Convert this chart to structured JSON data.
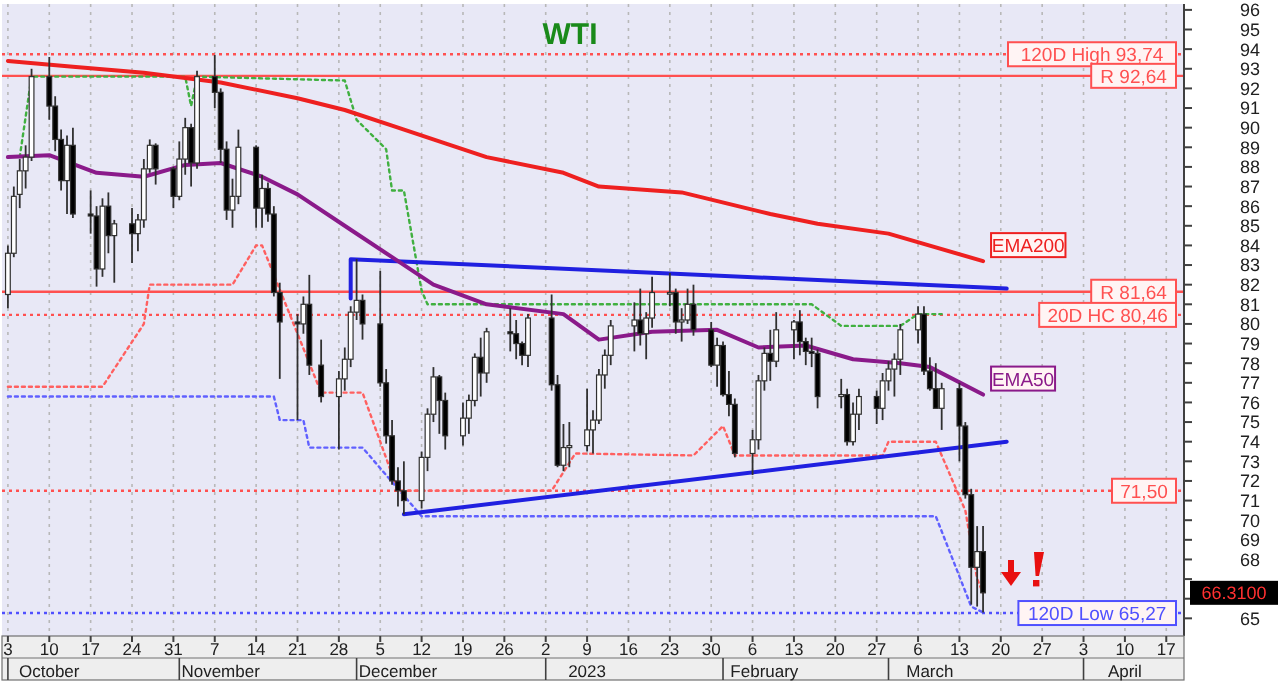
{
  "chart_data": {
    "type": "candlestick",
    "title": "WTI",
    "xlim": [
      "2022-10-02",
      "2023-04-20"
    ],
    "ylim": [
      64.1,
      96.3
    ],
    "xticks": [
      {
        "value": "2022-10-03",
        "label": "3"
      },
      {
        "value": "2022-10-10",
        "label": "10"
      },
      {
        "value": "2022-10-17",
        "label": "17"
      },
      {
        "value": "2022-10-24",
        "label": "24"
      },
      {
        "value": "2022-10-31",
        "label": "31"
      },
      {
        "value": "2022-11-07",
        "label": "7"
      },
      {
        "value": "2022-11-14",
        "label": "14"
      },
      {
        "value": "2022-11-21",
        "label": "21"
      },
      {
        "value": "2022-11-28",
        "label": "28"
      },
      {
        "value": "2022-12-05",
        "label": "5"
      },
      {
        "value": "2022-12-12",
        "label": "12"
      },
      {
        "value": "2022-12-19",
        "label": "19"
      },
      {
        "value": "2022-12-26",
        "label": "26"
      },
      {
        "value": "2023-01-02",
        "label": "2"
      },
      {
        "value": "2023-01-09",
        "label": "9"
      },
      {
        "value": "2023-01-16",
        "label": "16"
      },
      {
        "value": "2023-01-23",
        "label": "23"
      },
      {
        "value": "2023-01-30",
        "label": "30"
      },
      {
        "value": "2023-02-06",
        "label": "6"
      },
      {
        "value": "2023-02-13",
        "label": "13"
      },
      {
        "value": "2023-02-20",
        "label": "20"
      },
      {
        "value": "2023-02-27",
        "label": "27"
      },
      {
        "value": "2023-03-06",
        "label": "6"
      },
      {
        "value": "2023-03-13",
        "label": "13"
      },
      {
        "value": "2023-03-20",
        "label": "20"
      },
      {
        "value": "2023-03-27",
        "label": "27"
      },
      {
        "value": "2023-04-03",
        "label": "3"
      },
      {
        "value": "2023-04-10",
        "label": "10"
      },
      {
        "value": "2023-04-17",
        "label": "17"
      }
    ],
    "x2lim": [
      "2022-09-25",
      "2023-04-13"
    ],
    "x2ticks": [
      {
        "value": "2022-10-03",
        "label": "October"
      },
      {
        "value": "2022-11-01",
        "label": "November"
      },
      {
        "value": "2022-12-01",
        "label": "December"
      },
      {
        "value": "2023-01-02",
        "label": "2023"
      },
      {
        "value": "2023-02-01",
        "label": "February"
      },
      {
        "value": "2023-03-01",
        "label": "March"
      },
      {
        "value": "2023-04-03",
        "label": "April"
      }
    ],
    "yticks": [
      65,
      {
        "value": 66,
        "label": null
      },
      {
        "value": 67,
        "label": null
      },
      68,
      69,
      70,
      71,
      72,
      73,
      74,
      75,
      76,
      77,
      78,
      79,
      80,
      81,
      82,
      83,
      84,
      85,
      86,
      87,
      88,
      89,
      90,
      91,
      92,
      93,
      94,
      95,
      96
    ],
    "grid": "x",
    "marker": "none",
    "ref_lines": [
      {
        "axis": "y",
        "value": 93.74,
        "label": "120D High 93,74",
        "color": "#ff5050",
        "line_style": "dotted"
      },
      {
        "axis": "y",
        "value": 92.64,
        "label": "R 92,64",
        "color": "#ff5050",
        "line_style": "solid"
      },
      {
        "axis": "y",
        "value": 81.64,
        "label": "R 81,64",
        "color": "#ff5050",
        "line_style": "solid"
      },
      {
        "axis": "y",
        "value": 80.46,
        "label": "20D HC 80,46",
        "color": "#ff5050",
        "line_style": "dotted"
      },
      {
        "axis": "y",
        "value": 71.5,
        "label": "71,50",
        "color": "#ff5050",
        "line_style": "dotted"
      },
      {
        "axis": "y",
        "value": 65.27,
        "label": "120D Low 65,27",
        "color": "#5050ff",
        "line_style": "dotted"
      }
    ],
    "annotations": [
      "66.3100"
    ],
    "series": [
      {
        "type": "line",
        "color": "#ff6060",
        "line_style": "dotted",
        "x": [
          "2022-10-03",
          "2022-10-19",
          "2022-10-26",
          "2022-10-27",
          "2022-11-10",
          "2022-11-14",
          "2022-11-15",
          "2022-11-21",
          "2022-11-23",
          "2022-11-25",
          "2022-12-02",
          "2022-12-08",
          "2023-01-03",
          "2023-01-07",
          "2023-01-27",
          "2023-02-01",
          "2023-02-03",
          "2023-02-28",
          "2023-03-01",
          "2023-03-09",
          "2023-03-14",
          "2023-03-16",
          "2023-03-17"
        ],
        "values": [
          76.8,
          76.8,
          80.0,
          82.0,
          82.0,
          84.0,
          84.0,
          79.5,
          78.0,
          76.5,
          76.5,
          71.5,
          71.5,
          73.4,
          73.3,
          74.8,
          73.3,
          73.3,
          74.0,
          74.0,
          70.5,
          67.0,
          66.3
        ]
      },
      {
        "type": "line",
        "color": "#40b040",
        "line_style": "dotted",
        "x": [
          "2022-10-05",
          "2022-10-07",
          "2022-11-02",
          "2022-11-03",
          "2022-11-04",
          "2022-11-29",
          "2022-12-01",
          "2022-12-06",
          "2022-12-07",
          "2022-12-09",
          "2022-12-12",
          "2022-12-13",
          "2023-02-16",
          "2023-02-21",
          "2023-03-03",
          "2023-03-06",
          "2023-03-10"
        ],
        "values": [
          88.5,
          92.6,
          92.6,
          91.1,
          92.6,
          92.4,
          90.4,
          88.9,
          86.8,
          86.8,
          81.7,
          81.0,
          81.0,
          79.9,
          79.9,
          80.5,
          80.5
        ]
      },
      {
        "type": "line",
        "color": "#6060ff",
        "line_style": "dotted",
        "x": [
          "2022-10-03",
          "2022-11-17",
          "2022-11-18",
          "2022-11-22",
          "2022-11-23",
          "2022-12-02",
          "2022-12-12",
          "2023-03-09",
          "2023-03-15",
          "2023-03-17"
        ],
        "values": [
          76.3,
          76.3,
          75.1,
          75.1,
          73.7,
          73.7,
          70.2,
          70.2,
          65.6,
          65.3
        ]
      },
      {
        "type": "line",
        "color": "#2020e0",
        "line_style": "solid",
        "x": [
          "2022-11-30",
          "2022-11-30",
          "2023-03-21"
        ],
        "values": [
          81.3,
          83.3,
          81.8
        ]
      },
      {
        "type": "line",
        "color": "#2020e0",
        "line_style": "solid",
        "x": [
          "2022-12-09",
          "2023-03-21"
        ],
        "values": [
          70.3,
          74.0
        ]
      },
      {
        "type": "line",
        "name": "EMA200",
        "color": "#ee2020",
        "line_style": "solid",
        "x": [
          "2022-10-03",
          "2022-10-14",
          "2022-10-26",
          "2022-11-08",
          "2022-11-21",
          "2022-11-29",
          "2022-12-07",
          "2022-12-16",
          "2022-12-23",
          "2023-01-05",
          "2023-01-11",
          "2023-01-25",
          "2023-02-09",
          "2023-02-17",
          "2023-03-01",
          "2023-03-17"
        ],
        "values": [
          93.4,
          93.1,
          92.8,
          92.3,
          91.5,
          90.9,
          90.1,
          89.2,
          88.5,
          87.7,
          87.0,
          86.7,
          85.6,
          85.1,
          84.6,
          83.2
        ]
      },
      {
        "type": "line",
        "name": "EMA50",
        "color": "#8a1a8a",
        "line_style": "solid",
        "x": [
          "2022-10-03",
          "2022-10-10",
          "2022-10-18",
          "2022-10-26",
          "2022-11-02",
          "2022-11-08",
          "2022-11-15",
          "2022-11-21",
          "2022-11-30",
          "2022-12-07",
          "2022-12-14",
          "2022-12-23",
          "2023-01-05",
          "2023-01-11",
          "2023-01-20",
          "2023-01-31",
          "2023-02-07",
          "2023-02-15",
          "2023-02-23",
          "2023-03-03",
          "2023-03-08",
          "2023-03-17"
        ],
        "values": [
          88.5,
          88.6,
          87.7,
          87.5,
          88.1,
          88.2,
          87.5,
          86.6,
          84.8,
          83.4,
          82.0,
          81.0,
          80.5,
          79.2,
          79.6,
          79.7,
          78.8,
          78.9,
          78.2,
          78.0,
          77.8,
          76.4
        ]
      },
      {
        "x": [
          "2022-10-03",
          "2022-10-04",
          "2022-10-05",
          "2022-10-06",
          "2022-10-07",
          "2022-10-10",
          "2022-10-11",
          "2022-10-12",
          "2022-10-13",
          "2022-10-14",
          "2022-10-17",
          "2022-10-18",
          "2022-10-19",
          "2022-10-20",
          "2022-10-21",
          "2022-10-24",
          "2022-10-25",
          "2022-10-26",
          "2022-10-27",
          "2022-10-28",
          "2022-10-31",
          "2022-11-01",
          "2022-11-02",
          "2022-11-03",
          "2022-11-04",
          "2022-11-07",
          "2022-11-08",
          "2022-11-09",
          "2022-11-10",
          "2022-11-11",
          "2022-11-14",
          "2022-11-15",
          "2022-11-16",
          "2022-11-17",
          "2022-11-18",
          "2022-11-21",
          "2022-11-22",
          "2022-11-23",
          "2022-11-25",
          "2022-11-28",
          "2022-11-29",
          "2022-11-30",
          "2022-12-01",
          "2022-12-02",
          "2022-12-05",
          "2022-12-06",
          "2022-12-07",
          "2022-12-08",
          "2022-12-09",
          "2022-12-12",
          "2022-12-13",
          "2022-12-14",
          "2022-12-15",
          "2022-12-16",
          "2022-12-19",
          "2022-12-20",
          "2022-12-21",
          "2022-12-22",
          "2022-12-23",
          "2022-12-27",
          "2022-12-28",
          "2022-12-29",
          "2022-12-30",
          "2023-01-03",
          "2023-01-04",
          "2023-01-05",
          "2023-01-06",
          "2023-01-09",
          "2023-01-10",
          "2023-01-11",
          "2023-01-12",
          "2023-01-13",
          "2023-01-17",
          "2023-01-18",
          "2023-01-19",
          "2023-01-20",
          "2023-01-23",
          "2023-01-24",
          "2023-01-25",
          "2023-01-26",
          "2023-01-27",
          "2023-01-30",
          "2023-01-31",
          "2023-02-01",
          "2023-02-02",
          "2023-02-03",
          "2023-02-06",
          "2023-02-07",
          "2023-02-08",
          "2023-02-09",
          "2023-02-10",
          "2023-02-13",
          "2023-02-14",
          "2023-02-15",
          "2023-02-16",
          "2023-02-17",
          "2023-02-21",
          "2023-02-22",
          "2023-02-23",
          "2023-02-24",
          "2023-02-27",
          "2023-02-28",
          "2023-03-01",
          "2023-03-02",
          "2023-03-03",
          "2023-03-06",
          "2023-03-07",
          "2023-03-08",
          "2023-03-09",
          "2023-03-10",
          "2023-03-13",
          "2023-03-14",
          "2023-03-15",
          "2023-03-16",
          "2023-03-17"
        ],
        "ohlc": [
          [
            81.5,
            84.0,
            80.8,
            83.6
          ],
          [
            83.6,
            87.0,
            83.4,
            86.5
          ],
          [
            86.6,
            88.4,
            85.9,
            87.8
          ],
          [
            87.8,
            89.1,
            86.9,
            88.5
          ],
          [
            88.5,
            93.0,
            88.3,
            92.6
          ],
          [
            92.6,
            93.6,
            90.4,
            91.1
          ],
          [
            91.1,
            91.6,
            88.8,
            89.4
          ],
          [
            89.4,
            89.9,
            86.8,
            87.3
          ],
          [
            87.3,
            89.6,
            85.6,
            89.1
          ],
          [
            89.1,
            90.0,
            85.4,
            85.6
          ],
          [
            85.6,
            86.8,
            84.6,
            85.5
          ],
          [
            85.5,
            86.0,
            81.9,
            82.8
          ],
          [
            82.8,
            86.4,
            82.4,
            86.0
          ],
          [
            86.0,
            86.7,
            83.6,
            84.5
          ],
          [
            84.5,
            85.3,
            82.1,
            85.1
          ],
          [
            85.1,
            85.9,
            83.1,
            84.6
          ],
          [
            84.6,
            85.6,
            83.7,
            85.3
          ],
          [
            85.3,
            88.4,
            84.9,
            87.9
          ],
          [
            87.9,
            89.4,
            87.7,
            89.1
          ],
          [
            89.1,
            89.2,
            87.1,
            87.9
          ],
          [
            87.9,
            88.0,
            85.9,
            86.5
          ],
          [
            86.5,
            89.3,
            86.3,
            88.4
          ],
          [
            88.4,
            90.5,
            87.6,
            90.0
          ],
          [
            90.0,
            90.2,
            87.0,
            88.2
          ],
          [
            88.2,
            92.9,
            87.9,
            92.6
          ],
          [
            92.6,
            93.7,
            91.0,
            91.8
          ],
          [
            91.8,
            92.0,
            88.2,
            88.9
          ],
          [
            88.9,
            89.3,
            85.3,
            85.8
          ],
          [
            85.8,
            87.4,
            84.9,
            86.5
          ],
          [
            86.5,
            89.9,
            86.1,
            89.0
          ],
          [
            89.0,
            89.1,
            84.9,
            85.9
          ],
          [
            85.9,
            87.6,
            84.9,
            86.9
          ],
          [
            86.9,
            87.2,
            85.2,
            85.6
          ],
          [
            85.6,
            86.0,
            81.4,
            81.6
          ],
          [
            81.6,
            82.1,
            77.2,
            80.1
          ],
          [
            80.1,
            80.5,
            75.1,
            80.0
          ],
          [
            80.0,
            81.4,
            79.5,
            81.0
          ],
          [
            81.0,
            82.5,
            77.4,
            77.9
          ],
          [
            77.9,
            79.2,
            76.0,
            76.3
          ],
          [
            76.3,
            77.6,
            73.6,
            77.2
          ],
          [
            77.2,
            78.8,
            76.6,
            78.2
          ],
          [
            78.2,
            80.9,
            77.8,
            80.6
          ],
          [
            80.6,
            83.3,
            80.2,
            81.2
          ],
          [
            81.2,
            81.5,
            79.2,
            80.0
          ],
          [
            80.0,
            82.7,
            76.8,
            77.0
          ],
          [
            77.0,
            77.7,
            73.9,
            74.3
          ],
          [
            74.3,
            75.1,
            71.8,
            72.0
          ],
          [
            72.0,
            72.7,
            70.7,
            71.5
          ],
          [
            71.5,
            73.0,
            70.3,
            71.0
          ],
          [
            71.0,
            73.5,
            70.6,
            73.2
          ],
          [
            73.2,
            75.7,
            72.5,
            75.4
          ],
          [
            75.4,
            77.8,
            75.0,
            77.3
          ],
          [
            77.3,
            77.4,
            74.4,
            76.1
          ],
          [
            76.1,
            76.5,
            73.6,
            74.3
          ],
          [
            74.3,
            76.0,
            73.8,
            75.2
          ],
          [
            75.2,
            76.4,
            74.4,
            76.1
          ],
          [
            76.1,
            78.5,
            75.8,
            78.3
          ],
          [
            78.3,
            79.3,
            76.3,
            77.5
          ],
          [
            77.5,
            79.8,
            77.0,
            79.6
          ],
          [
            79.6,
            80.8,
            78.6,
            79.5
          ],
          [
            79.5,
            80.2,
            78.2,
            79.0
          ],
          [
            79.0,
            79.1,
            77.9,
            78.4
          ],
          [
            78.4,
            80.5,
            77.8,
            80.3
          ],
          [
            80.3,
            81.5,
            76.6,
            76.9
          ],
          [
            76.9,
            77.4,
            72.7,
            72.8
          ],
          [
            72.8,
            74.9,
            72.5,
            73.7
          ],
          [
            73.7,
            75.0,
            72.7,
            73.8
          ],
          [
            73.8,
            76.7,
            73.5,
            74.6
          ],
          [
            74.6,
            75.6,
            73.4,
            75.1
          ],
          [
            75.1,
            77.7,
            74.9,
            77.4
          ],
          [
            77.4,
            78.7,
            76.7,
            78.4
          ],
          [
            78.4,
            80.2,
            77.9,
            79.9
          ],
          [
            79.9,
            81.1,
            78.6,
            80.2
          ],
          [
            80.2,
            81.8,
            78.9,
            79.5
          ],
          [
            79.5,
            80.6,
            78.2,
            80.3
          ],
          [
            80.3,
            82.4,
            79.8,
            81.6
          ],
          [
            81.6,
            82.6,
            80.9,
            81.6
          ],
          [
            81.6,
            81.8,
            79.5,
            80.1
          ],
          [
            80.1,
            80.8,
            79.1,
            80.2
          ],
          [
            80.2,
            81.8,
            80.0,
            81.0
          ],
          [
            81.0,
            82.0,
            79.4,
            79.7
          ],
          [
            79.7,
            80.1,
            77.8,
            77.9
          ],
          [
            77.9,
            79.3,
            76.8,
            78.9
          ],
          [
            78.9,
            79.1,
            76.3,
            76.4
          ],
          [
            76.4,
            77.6,
            75.3,
            75.9
          ],
          [
            75.9,
            76.2,
            73.2,
            73.4
          ],
          [
            73.4,
            74.6,
            72.3,
            74.1
          ],
          [
            74.1,
            77.4,
            73.6,
            77.1
          ],
          [
            77.1,
            78.8,
            76.6,
            78.5
          ],
          [
            78.5,
            79.7,
            77.1,
            78.1
          ],
          [
            78.1,
            80.6,
            77.8,
            79.7
          ],
          [
            79.7,
            80.2,
            78.2,
            80.1
          ],
          [
            80.1,
            80.7,
            78.4,
            79.1
          ],
          [
            79.1,
            79.3,
            77.9,
            78.6
          ],
          [
            78.6,
            79.3,
            77.8,
            78.5
          ],
          [
            78.5,
            78.7,
            75.7,
            76.3
          ],
          [
            76.3,
            77.2,
            75.7,
            76.4
          ],
          [
            76.4,
            76.7,
            73.8,
            74.0
          ],
          [
            74.0,
            76.0,
            73.8,
            75.4
          ],
          [
            75.4,
            76.7,
            74.6,
            76.3
          ],
          [
            76.3,
            76.6,
            74.9,
            75.7
          ],
          [
            75.7,
            77.5,
            75.1,
            77.1
          ],
          [
            77.1,
            78.1,
            76.6,
            77.7
          ],
          [
            77.7,
            78.5,
            76.3,
            78.2
          ],
          [
            78.2,
            80.0,
            77.4,
            79.7
          ],
          [
            79.7,
            80.9,
            79.0,
            80.5
          ],
          [
            80.5,
            80.9,
            77.4,
            77.6
          ],
          [
            77.6,
            78.3,
            76.6,
            76.7
          ],
          [
            76.7,
            78.0,
            75.7,
            75.7
          ],
          [
            75.7,
            77.0,
            74.6,
            76.7
          ],
          [
            76.7,
            77.0,
            73.0,
            74.8
          ],
          [
            74.8,
            75.0,
            71.1,
            71.3
          ],
          [
            71.3,
            71.6,
            65.7,
            67.6
          ],
          [
            67.6,
            69.7,
            65.6,
            68.4
          ],
          [
            68.4,
            69.7,
            65.3,
            66.3
          ]
        ]
      }
    ]
  }
}
